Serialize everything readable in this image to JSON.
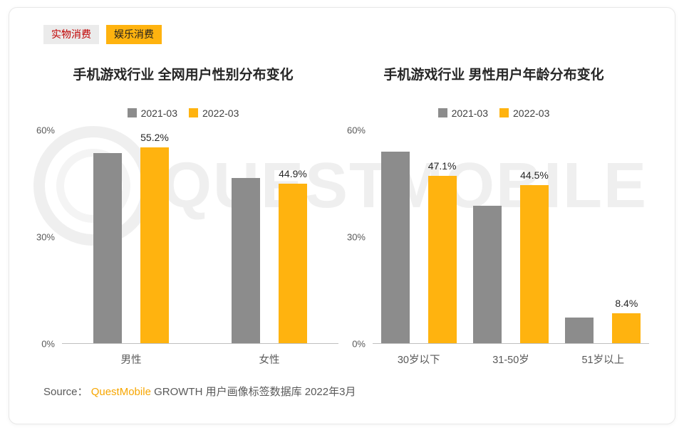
{
  "tags": [
    {
      "label": "实物消费",
      "active": false
    },
    {
      "label": "娱乐消费",
      "active": true
    }
  ],
  "watermark_text": "QUESTMOBILE",
  "source": {
    "prefix": "Source：",
    "brand": "QuestMobile",
    "rest": " GROWTH 用户画像标签数据库 2022年3月"
  },
  "colors": {
    "series_2021": "#8c8c8c",
    "series_2022": "#ffb30f",
    "tag_active_bg": "#ffb30f",
    "tag_inactive_text": "#c00000",
    "brand_orange": "#f7a600"
  },
  "chart_data": [
    {
      "type": "bar",
      "title": "手机游戏行业 全网用户性别分布变化",
      "categories": [
        "男性",
        "女性"
      ],
      "series": [
        {
          "name": "2021-03",
          "color": "#8c8c8c",
          "values": [
            53.5,
            46.5
          ],
          "labels": [
            null,
            null
          ]
        },
        {
          "name": "2022-03",
          "color": "#ffb30f",
          "values": [
            55.2,
            44.9
          ],
          "labels": [
            "55.2%",
            "44.9%"
          ]
        }
      ],
      "ylim": [
        0,
        60
      ],
      "yticks": [
        {
          "label": "60%",
          "value": 60
        },
        {
          "label": "30%",
          "value": 30
        },
        {
          "label": "0%",
          "value": 0
        }
      ],
      "grid": false,
      "legend_position": "top"
    },
    {
      "type": "bar",
      "title": "手机游戏行业 男性用户年龄分布变化",
      "categories": [
        "30岁以下",
        "31-50岁",
        "51岁以上"
      ],
      "series": [
        {
          "name": "2021-03",
          "color": "#8c8c8c",
          "values": [
            54.0,
            38.8,
            7.3
          ],
          "labels": [
            null,
            null,
            null
          ]
        },
        {
          "name": "2022-03",
          "color": "#ffb30f",
          "values": [
            47.1,
            44.5,
            8.4
          ],
          "labels": [
            "47.1%",
            "44.5%",
            "8.4%"
          ]
        }
      ],
      "ylim": [
        0,
        60
      ],
      "yticks": [
        {
          "label": "60%",
          "value": 60
        },
        {
          "label": "30%",
          "value": 30
        },
        {
          "label": "0%",
          "value": 0
        }
      ],
      "grid": false,
      "legend_position": "top"
    }
  ]
}
